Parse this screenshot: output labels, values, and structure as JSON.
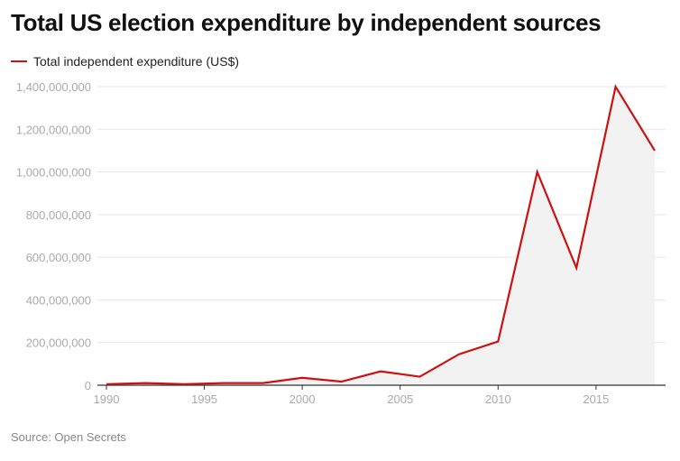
{
  "title": "Total US election expenditure by independent sources",
  "source": "Source: Open Secrets",
  "colors": {
    "line": "#cc1111",
    "area": "#f2f2f2",
    "grid": "#e6e6e6",
    "tick_label": "#aaaaaa",
    "axis": "#333333"
  },
  "chart_data": {
    "type": "line",
    "title": "Total US election expenditure by independent sources",
    "xlabel": "",
    "ylabel": "",
    "xlim": [
      1990,
      2018
    ],
    "ylim": [
      0,
      1400000000
    ],
    "grid": true,
    "legend_position": "top-left",
    "area_fill": true,
    "x_ticks": [
      1990,
      1995,
      2000,
      2005,
      2010,
      2015
    ],
    "y_ticks": [
      0,
      200000000,
      400000000,
      600000000,
      800000000,
      1000000000,
      1200000000,
      1400000000
    ],
    "y_tick_labels": [
      "0",
      "200,000,000",
      "400,000,000",
      "600,000,000",
      "800,000,000",
      "1,000,000,000",
      "1,200,000,000",
      "1,400,000,000"
    ],
    "series": [
      {
        "name": "Total independent expenditure (US$)",
        "x": [
          1990,
          1992,
          1994,
          1996,
          1998,
          2000,
          2002,
          2004,
          2006,
          2008,
          2010,
          2012,
          2014,
          2016,
          2018
        ],
        "values": [
          5000000,
          10000000,
          5000000,
          10000000,
          10000000,
          35000000,
          17000000,
          65000000,
          40000000,
          145000000,
          205000000,
          1000000000,
          550000000,
          1400000000,
          1100000000
        ]
      }
    ]
  }
}
